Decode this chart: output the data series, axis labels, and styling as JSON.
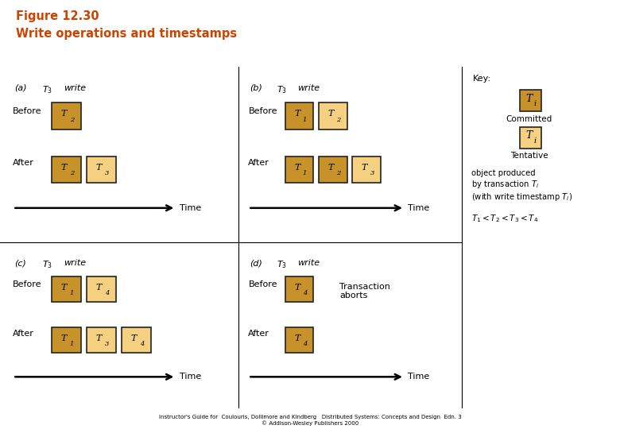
{
  "title_line1": "Figure 12.30",
  "title_line2": "Write operations and timestamps",
  "title_color": "#cc4400",
  "gold_bar_color": "#f5c400",
  "committed_color": "#c8922a",
  "tentative_color": "#f5d080",
  "border_color": "#222222",
  "bg_color": "#ffffff",
  "footer": "Instructor's Guide for  Coulouris, Dollimore and Kindberg   Distributed Systems: Concepts and Design  Edn. 3\n© Addison-Wesley Publishers 2000"
}
